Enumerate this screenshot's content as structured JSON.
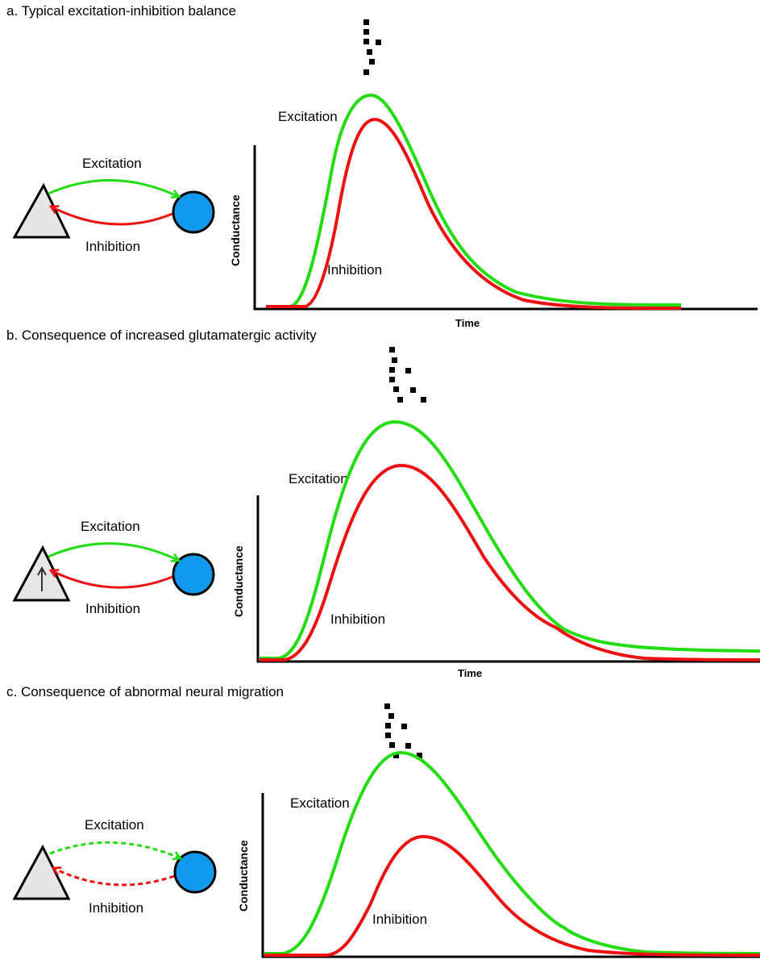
{
  "panels": [
    {
      "title": "a. Typical excitation-inhibition balance",
      "diagram": {
        "excitation_label": "Excitation",
        "inhibition_label": "Inhibition",
        "arrows_dashed": false,
        "arrow_in_triangle": false
      },
      "plot": {
        "excitation_label": "Excitation",
        "inhibition_label": "Inhibition",
        "ylabel": "Conductance",
        "xlabel": "Time"
      }
    },
    {
      "title": "b. Consequence of increased glutamatergic activity",
      "diagram": {
        "excitation_label": "Excitation",
        "inhibition_label": "Inhibition",
        "arrows_dashed": false,
        "arrow_in_triangle": true
      },
      "plot": {
        "excitation_label": "Excitation",
        "inhibition_label": "Inhibition",
        "ylabel": "Conductance",
        "xlabel": "Time"
      }
    },
    {
      "title": "c. Consequence of abnormal neural migration",
      "diagram": {
        "excitation_label": "Excitation",
        "inhibition_label": "Inhibition",
        "arrows_dashed": true,
        "arrow_in_triangle": false
      },
      "plot": {
        "excitation_label": "Excitation",
        "inhibition_label": "Inhibition",
        "ylabel": "Conductance",
        "xlabel": ""
      }
    }
  ],
  "colors": {
    "excitation": "#22dd11",
    "inhibition": "#ee1111",
    "triangle_fill": "#e6e6e6",
    "circle_fill": "#1199ee"
  }
}
